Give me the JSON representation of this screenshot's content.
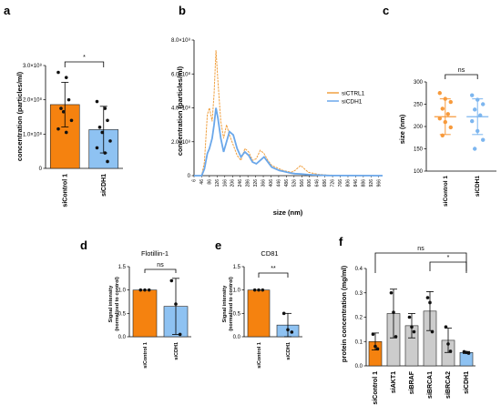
{
  "colors": {
    "orange": "#f5820f",
    "blue": "#8ec2f2",
    "blue_line": "#6aa7ea",
    "orange_line": "#f0a040",
    "grey": "#cccccc",
    "dot_orange": "#f79a3c",
    "dot_blue": "#7db6ef"
  },
  "chart_data": [
    {
      "panel": "a",
      "type": "bar",
      "ylabel": "concentration (particles/ml)",
      "ylim": [
        0,
        300000000
      ],
      "yticks": [
        "0",
        "1.0×10⁸",
        "2.0×10⁸",
        "3.0×10⁸"
      ],
      "ytick_values": [
        0,
        100000000,
        200000000,
        300000000
      ],
      "categories": [
        "siControl 1",
        "siCDH1"
      ],
      "values": [
        186000000,
        113000000
      ],
      "errors": [
        65000000,
        68000000
      ],
      "points": [
        [
          280000000,
          265000000,
          200000000,
          175000000,
          165000000,
          140000000,
          115000000,
          105000000
        ],
        [
          195000000,
          175000000,
          140000000,
          120000000,
          105000000,
          80000000,
          60000000,
          45000000,
          20000000
        ]
      ],
      "significance": "*"
    },
    {
      "panel": "b",
      "type": "line",
      "ylabel": "concentration (particles/ml)",
      "xlabel": "size (nm)",
      "ylim": [
        0,
        800000000
      ],
      "yticks": [
        "0",
        "2.0×10⁸",
        "4.0×10⁸",
        "6.0×10⁸",
        "8.0×10⁸"
      ],
      "ytick_values": [
        0,
        200000000,
        400000000,
        600000000,
        800000000
      ],
      "xlim": [
        6,
        986
      ],
      "xticks": [
        "6",
        "46",
        "86",
        "126",
        "166",
        "206",
        "246",
        "286",
        "326",
        "366",
        "406",
        "446",
        "486",
        "526",
        "566",
        "606",
        "646",
        "686",
        "726",
        "766",
        "806",
        "846",
        "886",
        "926",
        "966"
      ],
      "xtick_values": [
        6,
        46,
        86,
        126,
        166,
        206,
        246,
        286,
        326,
        366,
        406,
        446,
        486,
        526,
        566,
        606,
        646,
        686,
        726,
        766,
        806,
        846,
        886,
        926,
        966
      ],
      "series": [
        {
          "name": "siCTRL1",
          "color_key": "orange_line",
          "x": [
            6,
            46,
            60,
            75,
            86,
            100,
            110,
            120,
            130,
            145,
            160,
            175,
            190,
            210,
            230,
            250,
            270,
            290,
            310,
            330,
            350,
            370,
            390,
            410,
            430,
            450,
            470,
            490,
            510,
            530,
            560,
            600,
            650,
            700,
            986
          ],
          "y": [
            0,
            0,
            80000000,
            360000000,
            400000000,
            320000000,
            480000000,
            740000000,
            560000000,
            320000000,
            220000000,
            300000000,
            240000000,
            180000000,
            120000000,
            90000000,
            160000000,
            140000000,
            90000000,
            100000000,
            150000000,
            130000000,
            90000000,
            60000000,
            50000000,
            40000000,
            30000000,
            25000000,
            20000000,
            30000000,
            60000000,
            20000000,
            8000000,
            3000000,
            0
          ]
        },
        {
          "name": "siCDH1",
          "color_key": "blue_line",
          "x": [
            6,
            46,
            60,
            75,
            86,
            100,
            110,
            120,
            130,
            145,
            160,
            175,
            190,
            210,
            230,
            250,
            270,
            290,
            310,
            330,
            350,
            370,
            390,
            410,
            430,
            450,
            470,
            490,
            510,
            530,
            560,
            600,
            650,
            700,
            986
          ],
          "y": [
            0,
            0,
            40000000,
            130000000,
            160000000,
            220000000,
            300000000,
            400000000,
            340000000,
            220000000,
            140000000,
            200000000,
            260000000,
            240000000,
            160000000,
            110000000,
            140000000,
            120000000,
            80000000,
            70000000,
            90000000,
            110000000,
            80000000,
            50000000,
            40000000,
            30000000,
            25000000,
            20000000,
            15000000,
            12000000,
            10000000,
            6000000,
            3000000,
            1000000,
            0
          ]
        }
      ],
      "legend": "right"
    },
    {
      "panel": "c",
      "type": "scatter",
      "ylabel": "size (nm)",
      "ylim": [
        100,
        300
      ],
      "yticks": [
        "100",
        "150",
        "200",
        "250",
        "300"
      ],
      "ytick_values": [
        100,
        150,
        200,
        250,
        300
      ],
      "categories": [
        "siControl 1",
        "siCDH1"
      ],
      "means": [
        222,
        222
      ],
      "sd": [
        40,
        40
      ],
      "points": [
        [
          275,
          262,
          255,
          240,
          228,
          218,
          210,
          198,
          180
        ],
        [
          270,
          260,
          250,
          238,
          225,
          212,
          190,
          170,
          150
        ]
      ],
      "significance": "ns"
    },
    {
      "panel": "d",
      "type": "bar",
      "title": "Flotillin-1",
      "ylabel": "Signal intensity\n(normalized to control)",
      "ylim": [
        0,
        1.5
      ],
      "yticks": [
        "0.0",
        "0.5",
        "1.0",
        "1.5"
      ],
      "ytick_values": [
        0,
        0.5,
        1,
        1.5
      ],
      "categories": [
        "siControl 1",
        "siCDH1"
      ],
      "values": [
        1.0,
        0.65
      ],
      "errors": [
        0.0,
        0.6
      ],
      "points": [
        [
          1.0,
          1.0,
          1.0
        ],
        [
          1.2,
          0.7,
          0.05
        ]
      ],
      "significance": "ns"
    },
    {
      "panel": "e",
      "type": "bar",
      "title": "CD81",
      "ylabel": "Signal intensity\n(normalized to control)",
      "ylim": [
        0,
        1.5
      ],
      "yticks": [
        "0.0",
        "0.5",
        "1.0",
        "1.5"
      ],
      "ytick_values": [
        0,
        0.5,
        1,
        1.5
      ],
      "categories": [
        "siControl 1",
        "siCDH1"
      ],
      "values": [
        1.0,
        0.25
      ],
      "errors": [
        0.0,
        0.25
      ],
      "points": [
        [
          1.0,
          1.0,
          1.0
        ],
        [
          0.5,
          0.15,
          0.1
        ]
      ],
      "significance": "**"
    },
    {
      "panel": "f",
      "type": "bar",
      "ylabel": "protein concentration (mg/ml)",
      "ylim": [
        0,
        0.4
      ],
      "yticks": [
        "0.0",
        "0.1",
        "0.2",
        "0.3",
        "0.4"
      ],
      "ytick_values": [
        0,
        0.1,
        0.2,
        0.3,
        0.4
      ],
      "categories": [
        "siControl 1",
        "siAKT1",
        "siBRAF",
        "siBRCA1",
        "siBRCA2",
        "siCDH1"
      ],
      "values": [
        0.1,
        0.215,
        0.165,
        0.225,
        0.105,
        0.055
      ],
      "errors": [
        0.035,
        0.1,
        0.05,
        0.08,
        0.05,
        0.004
      ],
      "points": [
        [
          0.13,
          0.08,
          0.07
        ],
        [
          0.3,
          0.22,
          0.12
        ],
        [
          0.2,
          0.16,
          0.14
        ],
        [
          0.28,
          0.26,
          0.14
        ],
        [
          0.16,
          0.09,
          0.06
        ],
        [
          0.058,
          0.055,
          0.052
        ]
      ],
      "significance": [
        {
          "from": 0,
          "to": 5,
          "label": "ns"
        },
        {
          "from": 3,
          "to": 5,
          "label": "*"
        }
      ]
    }
  ]
}
